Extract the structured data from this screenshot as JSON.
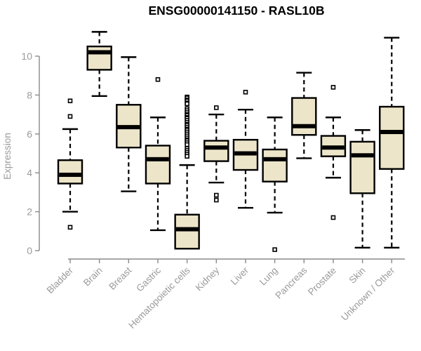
{
  "title": "ENSG00000141150 - RASL10B",
  "colors": {
    "background": "#ffffff",
    "box_fill": "#ece5c9",
    "box_stroke": "#000000",
    "median": "#000000",
    "whisker": "#000000",
    "outlier_stroke": "#000000",
    "outlier_fill": "#ffffff",
    "axis_line": "#8a8a8a",
    "axis_text": "#9a9a9a",
    "title_text": "#000000"
  },
  "chart_data": {
    "type": "boxplot",
    "title": "ENSG00000141150 - RASL10B",
    "xlabel": "",
    "ylabel": "Expression",
    "ylim": [
      0,
      11.5
    ],
    "yticks": [
      0,
      2,
      4,
      6,
      8,
      10
    ],
    "grid": false,
    "legend": "none",
    "categories": [
      "Bladder",
      "Brain",
      "Breast",
      "Gastric",
      "Hematopoietic cells",
      "Kidney",
      "Liver",
      "Lung",
      "Pancreas",
      "Prostate",
      "Skin",
      "Unknown / Other"
    ],
    "series": [
      {
        "name": "Bladder",
        "whisker_low": 2.0,
        "q1": 3.45,
        "median": 3.9,
        "q3": 4.65,
        "whisker_high": 6.25,
        "outliers": [
          7.7,
          6.9,
          1.2
        ]
      },
      {
        "name": "Brain",
        "whisker_low": 7.95,
        "q1": 9.3,
        "median": 10.2,
        "q3": 10.5,
        "whisker_high": 11.25,
        "outliers": []
      },
      {
        "name": "Breast",
        "whisker_low": 3.05,
        "q1": 5.3,
        "median": 6.35,
        "q3": 7.5,
        "whisker_high": 9.95,
        "outliers": []
      },
      {
        "name": "Gastric",
        "whisker_low": 1.05,
        "q1": 3.45,
        "median": 4.7,
        "q3": 5.4,
        "whisker_high": 6.85,
        "outliers": [
          8.8
        ]
      },
      {
        "name": "Hematopoietic cells",
        "whisker_low": 0.1,
        "q1": 0.1,
        "median": 1.1,
        "q3": 1.85,
        "whisker_high": 4.4,
        "outliers": [
          7.9,
          7.85,
          7.75,
          7.7,
          7.6,
          7.55,
          7.3,
          7.2,
          7.1,
          7.0,
          6.95,
          6.85,
          6.8,
          6.7,
          6.6,
          6.5,
          6.45,
          6.35,
          6.25,
          6.2,
          6.1,
          6.0,
          5.9,
          5.8,
          5.7,
          5.65,
          5.55,
          5.45,
          5.25,
          5.15,
          5.05,
          4.95,
          4.85
        ]
      },
      {
        "name": "Kidney",
        "whisker_low": 3.5,
        "q1": 4.6,
        "median": 5.3,
        "q3": 5.65,
        "whisker_high": 7.0,
        "outliers": [
          7.35,
          2.85,
          2.6
        ]
      },
      {
        "name": "Liver",
        "whisker_low": 2.2,
        "q1": 4.15,
        "median": 5.0,
        "q3": 5.7,
        "whisker_high": 7.25,
        "outliers": [
          8.15
        ]
      },
      {
        "name": "Lung",
        "whisker_low": 1.95,
        "q1": 3.55,
        "median": 4.7,
        "q3": 5.2,
        "whisker_high": 6.85,
        "outliers": [
          0.05
        ]
      },
      {
        "name": "Pancreas",
        "whisker_low": 4.75,
        "q1": 5.95,
        "median": 6.4,
        "q3": 7.85,
        "whisker_high": 9.15,
        "outliers": []
      },
      {
        "name": "Prostate",
        "whisker_low": 3.75,
        "q1": 4.85,
        "median": 5.3,
        "q3": 5.9,
        "whisker_high": 6.85,
        "outliers": [
          8.4,
          1.7
        ]
      },
      {
        "name": "Skin",
        "whisker_low": 0.15,
        "q1": 2.95,
        "median": 4.9,
        "q3": 5.6,
        "whisker_high": 6.2,
        "outliers": []
      },
      {
        "name": "Unknown / Other",
        "whisker_low": 0.15,
        "q1": 4.2,
        "median": 6.1,
        "q3": 7.4,
        "whisker_high": 10.95,
        "outliers": []
      }
    ]
  }
}
